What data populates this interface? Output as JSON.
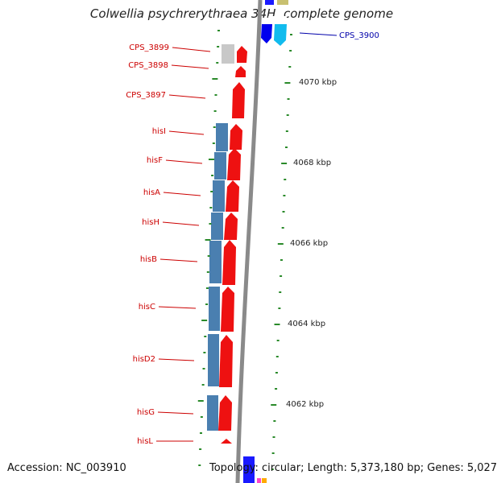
{
  "title": "Colwellia psychrerythraea 34H, complete genome",
  "footer": {
    "accession": "Accession: NC_003910",
    "topology": "Topology: circular; Length: 5,373,180 bp; Genes: 5,027"
  },
  "colors": {
    "forward_gene": "#ee1111",
    "cds_block": "#4a7fb0",
    "label_red": "#cc0000",
    "label_blue": "#0000aa",
    "backbone": "#8a8a8a",
    "tick_green": "#2a8a2a"
  },
  "genes": [
    {
      "name": "CPS_3900",
      "strand": "reverse",
      "label_side": "right",
      "color": "#00bfff"
    },
    {
      "name": "CPS_3899",
      "strand": "forward",
      "label_side": "left",
      "color": "#ee1111"
    },
    {
      "name": "CPS_3898",
      "strand": "forward",
      "label_side": "left",
      "color": "#ee1111"
    },
    {
      "name": "CPS_3897",
      "strand": "forward",
      "label_side": "left",
      "color": "#ee1111"
    },
    {
      "name": "hisI",
      "strand": "forward",
      "label_side": "left",
      "color": "#ee1111"
    },
    {
      "name": "hisF",
      "strand": "forward",
      "label_side": "left",
      "color": "#ee1111"
    },
    {
      "name": "hisA",
      "strand": "forward",
      "label_side": "left",
      "color": "#ee1111"
    },
    {
      "name": "hisH",
      "strand": "forward",
      "label_side": "left",
      "color": "#ee1111"
    },
    {
      "name": "hisB",
      "strand": "forward",
      "label_side": "left",
      "color": "#ee1111"
    },
    {
      "name": "hisC",
      "strand": "forward",
      "label_side": "left",
      "color": "#ee1111"
    },
    {
      "name": "hisD2",
      "strand": "forward",
      "label_side": "left",
      "color": "#ee1111"
    },
    {
      "name": "hisG",
      "strand": "forward",
      "label_side": "left",
      "color": "#ee1111"
    },
    {
      "name": "hisL",
      "strand": "forward",
      "label_side": "left",
      "color": "#ee1111"
    }
  ],
  "scale_labels": [
    "4070 kbp",
    "4068 kbp",
    "4066 kbp",
    "4064 kbp",
    "4062 kbp"
  ]
}
